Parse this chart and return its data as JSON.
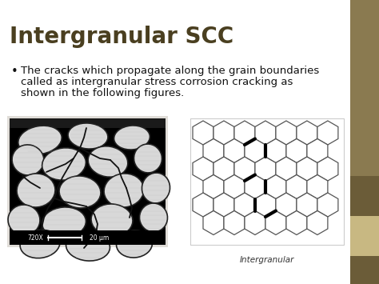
{
  "title": "Intergranular SCC",
  "title_color": "#4a3f20",
  "title_fontsize": 20,
  "bullet_text_line1": "The cracks which propagate along the grain boundaries",
  "bullet_text_line2": "called as intergranular stress corrosion cracking as",
  "bullet_text_line3": "shown in the following figures.",
  "bullet_fontsize": 9.5,
  "body_text_color": "#111111",
  "bg_color": "#f5f4f0",
  "slide_white": "#ffffff",
  "right_bar_top_color": "#8a7a50",
  "right_bar_bottom_color": "#6b5c38",
  "right_bar_accent_color": "#c8b882",
  "scale_label": "720X        20 μm",
  "intergranular_label": "Intergranular",
  "label_fontsize": 7.5,
  "hex_r": 15,
  "hex_n_cols": 6,
  "hex_n_rows": 6,
  "crack_edge_linewidth": 3.0,
  "hex_linewidth": 0.9
}
